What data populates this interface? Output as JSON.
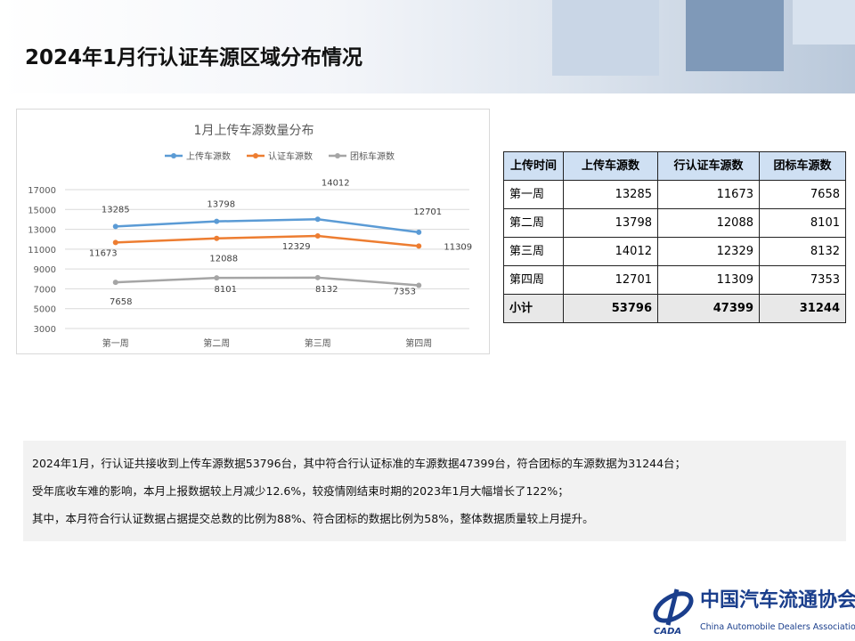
{
  "title": "2024年1月行认证车源区域分布情况",
  "chart_data": {
    "type": "line",
    "title": "1月上传车源数量分布",
    "categories": [
      "第一周",
      "第二周",
      "第三周",
      "第四周"
    ],
    "ylim": [
      3000,
      17000
    ],
    "yticks": [
      3000,
      5000,
      7000,
      9000,
      11000,
      13000,
      15000,
      17000
    ],
    "grid": true,
    "legend": "top",
    "series": [
      {
        "name": "上传车源数",
        "color": "#5b9bd5",
        "values": [
          13285,
          13798,
          14012,
          12701
        ]
      },
      {
        "name": "认证车源数",
        "color": "#ed7d31",
        "values": [
          11673,
          12088,
          12329,
          11309
        ]
      },
      {
        "name": "团标车源数",
        "color": "#a5a5a5",
        "values": [
          7658,
          8101,
          8132,
          7353
        ]
      }
    ]
  },
  "table": {
    "headers": [
      "上传时间",
      "上传车源数",
      "行认证车源数",
      "团标车源数"
    ],
    "rows": [
      [
        "第一周",
        "13285",
        "11673",
        "7658"
      ],
      [
        "第二周",
        "13798",
        "12088",
        "8101"
      ],
      [
        "第三周",
        "14012",
        "12329",
        "8132"
      ],
      [
        "第四周",
        "12701",
        "11309",
        "7353"
      ]
    ],
    "total": [
      "小计",
      "53796",
      "47399",
      "31244"
    ]
  },
  "summary": [
    "2024年1月，行认证共接收到上传车源数据53796台，其中符合行认证标准的车源数据47399台，符合团标的车源数据为31244台；",
    "受年底收车难的影响，本月上报数据较上月减少12.6%，较疫情刚结束时期的2023年1月大幅增长了122%；",
    "其中，本月符合行认证数据占据提交总数的比例为88%、符合团标的数据比例为58%，整体数据质量较上月提升。"
  ],
  "logo": {
    "cn": "中国汽车流通协会",
    "en": "China Automobile Dealers Association",
    "mark": "CADA"
  }
}
